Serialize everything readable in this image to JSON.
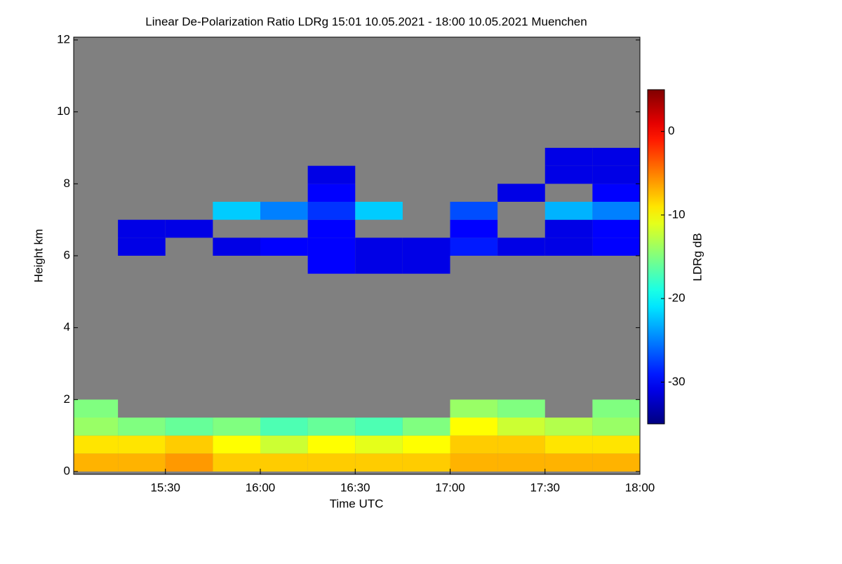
{
  "chart_data": {
    "type": "heatmap",
    "title": "Linear De-Polarization Ratio LDRg   15:01 10.05.2021 - 18:00 10.05.2021 Muenchen",
    "x_label": "Time UTC",
    "y_label": "Height km",
    "colorbar_label": "LDRg dB",
    "colormap": "jet",
    "background": "#808080",
    "xlim": [
      "15:01",
      "18:00"
    ],
    "xticks": [
      "15:30",
      "16:00",
      "16:30",
      "17:00",
      "17:30",
      "18:00"
    ],
    "ylim": [
      0,
      12
    ],
    "yticks": [
      0,
      2,
      4,
      6,
      8,
      10,
      12
    ],
    "zlim": [
      -35,
      5
    ],
    "zticks": [
      -30,
      -20,
      -10,
      0
    ],
    "x_bins": [
      "15:01",
      "15:15",
      "15:30",
      "15:45",
      "16:00",
      "16:15",
      "16:30",
      "16:45",
      "17:00",
      "17:15",
      "17:30",
      "17:45",
      "18:00"
    ],
    "y_bins": [
      0,
      0.5,
      1,
      1.5,
      2,
      2.5,
      5.5,
      6,
      6.5,
      7,
      7.5,
      8,
      8.5,
      9
    ],
    "z": [
      [
        -7,
        -7,
        -6,
        -8,
        -8,
        -8,
        -8,
        -8,
        -7,
        -7,
        -7,
        -7
      ],
      [
        -9,
        -9,
        -8,
        -10,
        -12,
        -10,
        -11,
        -10,
        -8,
        -8,
        -9,
        -9
      ],
      [
        -14,
        -15,
        -16,
        -15,
        -17,
        -16,
        -17,
        -15,
        -10,
        -12,
        -13,
        -14
      ],
      [
        -15,
        null,
        null,
        null,
        null,
        null,
        null,
        null,
        -14,
        -15,
        null,
        -15
      ],
      [
        null,
        null,
        null,
        null,
        null,
        null,
        null,
        null,
        null,
        null,
        null,
        null
      ],
      [
        null,
        null,
        null,
        null,
        null,
        null,
        null,
        null,
        null,
        null,
        null,
        null
      ],
      [
        null,
        null,
        null,
        null,
        null,
        -30,
        -31,
        -31,
        null,
        null,
        null,
        null
      ],
      [
        null,
        -31,
        null,
        -31,
        -30,
        -30,
        -31,
        -31,
        -29,
        -31,
        -31,
        -30
      ],
      [
        null,
        -31,
        -31,
        null,
        null,
        -30,
        null,
        null,
        -30,
        null,
        -31,
        -30
      ],
      [
        null,
        null,
        null,
        -22,
        -25,
        -28,
        -22,
        null,
        -27,
        null,
        -23,
        -25
      ],
      [
        null,
        null,
        null,
        null,
        null,
        -30,
        null,
        null,
        null,
        -31,
        null,
        -30
      ],
      [
        null,
        null,
        null,
        null,
        null,
        -31,
        null,
        null,
        null,
        null,
        -31,
        -31
      ],
      [
        null,
        null,
        null,
        null,
        null,
        null,
        null,
        null,
        null,
        null,
        -31,
        -31
      ]
    ]
  }
}
